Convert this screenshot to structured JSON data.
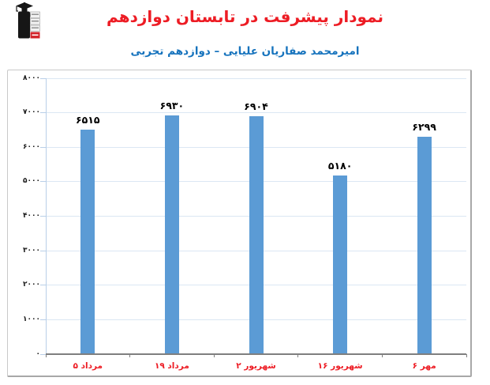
{
  "header": {
    "title": "نمودار پیشرفت در تابستان دوازدهم",
    "subtitle": "امیرمحمد صفاریان علیایی – دوازدهم تجربی"
  },
  "logo": {
    "name": "graduate-figure-logo",
    "accent_color": "#d2232a",
    "body_color": "#161616"
  },
  "colors": {
    "title": "#ed1c24",
    "subtitle": "#1673bd",
    "bar": "#5b9bd5",
    "gridline": "#dbe7f3",
    "axis_light": "#b9cfe8",
    "axis_dark": "#7f7f7f",
    "x_label": "#ed1c24",
    "y_label": "#1a1a1a",
    "value_label": "#000000"
  },
  "chart_data": {
    "type": "bar",
    "title": "نمودار پیشرفت در تابستان دوازدهم",
    "subtitle": "امیرمحمد صفاریان علیایی – دوازدهم تجربی",
    "categories": [
      "۵ مرداد",
      "۱۹ مرداد",
      "۲ شهریور",
      "۱۶ شهریور",
      "۶ مهر"
    ],
    "values": [
      6515,
      6930,
      6904,
      5180,
      6299
    ],
    "value_labels": [
      "۶۵۱۵",
      "۶۹۳۰",
      "۶۹۰۴",
      "۵۱۸۰",
      "۶۲۹۹"
    ],
    "ylim": [
      0,
      8000
    ],
    "y_ticks": [
      0,
      1000,
      2000,
      3000,
      4000,
      5000,
      6000,
      7000,
      8000
    ],
    "y_tick_labels": [
      "۰",
      "۱۰۰۰",
      "۲۰۰۰",
      "۳۰۰۰",
      "۴۰۰۰",
      "۵۰۰۰",
      "۶۰۰۰",
      "۷۰۰۰",
      "۸۰۰۰"
    ],
    "grid": true,
    "legend": false,
    "bar_color": "#5b9bd5"
  }
}
